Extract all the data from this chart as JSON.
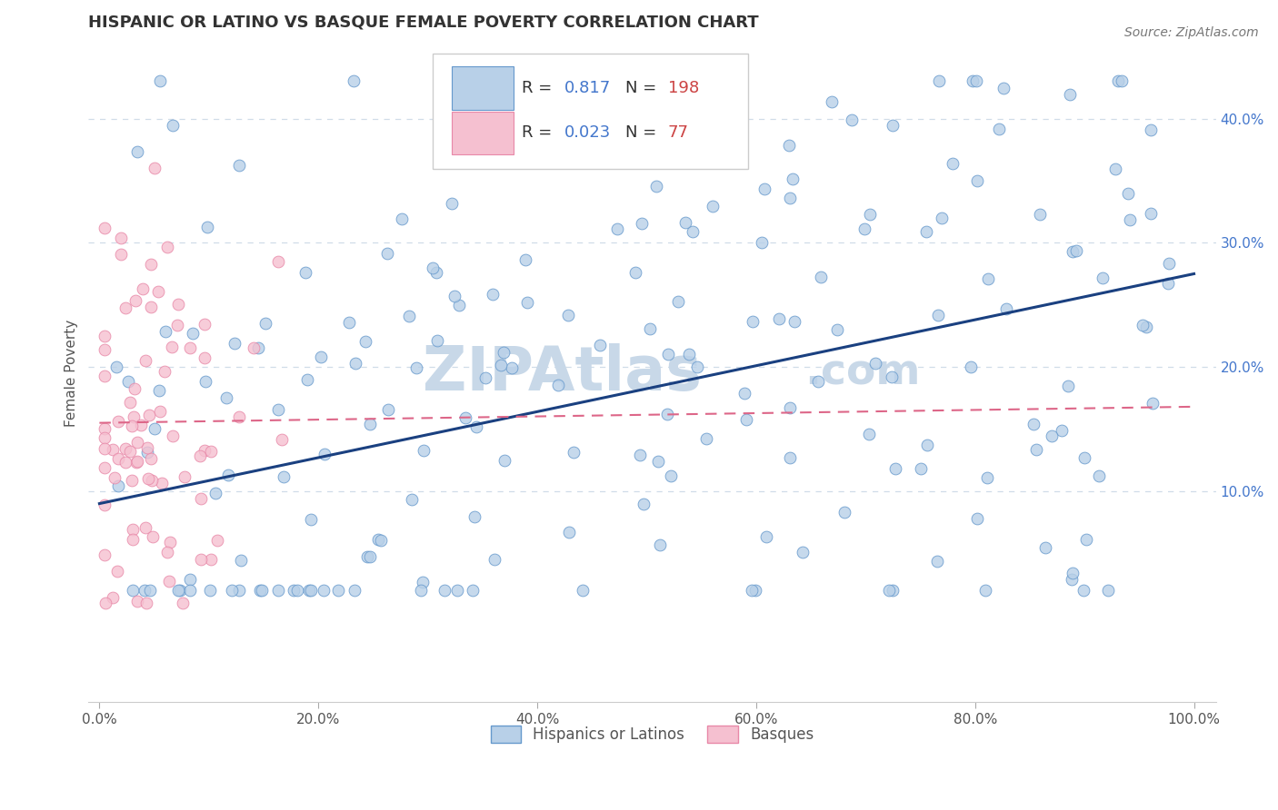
{
  "title": "HISPANIC OR LATINO VS BASQUE FEMALE POVERTY CORRELATION CHART",
  "source_text": "Source: ZipAtlas.com",
  "ylabel": "Female Poverty",
  "blue_R": 0.817,
  "blue_N": 198,
  "pink_R": 0.023,
  "pink_N": 77,
  "blue_color": "#b8d0e8",
  "blue_edge": "#6699cc",
  "pink_color": "#f5c0d0",
  "pink_edge": "#e888a8",
  "blue_line_color": "#1a4080",
  "pink_line_color": "#dd6688",
  "grid_color": "#d0dce8",
  "watermark_color": "#c8d8e8",
  "title_color": "#333333",
  "source_color": "#777777",
  "ytick_color": "#4477cc",
  "xtick_color": "#555555",
  "ylabel_color": "#555555",
  "legend_r_color": "#4477cc",
  "legend_n_color": "#cc4444",
  "legend_border_color": "#cccccc",
  "bottom_label_color": "#555555",
  "blue_line_start_y": 0.09,
  "blue_line_end_y": 0.275,
  "pink_line_start_y": 0.155,
  "pink_line_end_y": 0.168,
  "seed": 42,
  "xlim_min": -0.01,
  "xlim_max": 1.02,
  "ylim_min": -0.07,
  "ylim_max": 0.46
}
